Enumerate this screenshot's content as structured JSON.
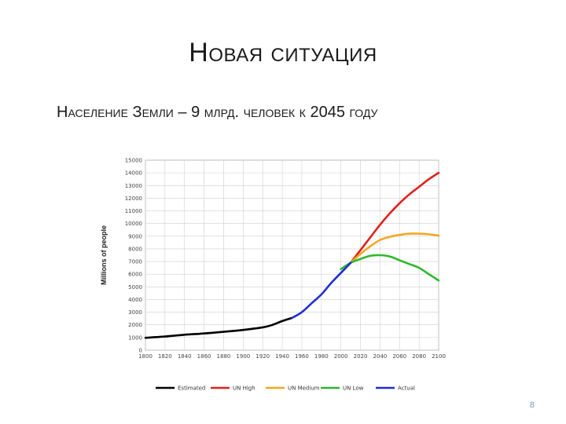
{
  "slide": {
    "title": "Новая ситуация",
    "subtitle": "Население Земли – 9 млрд. человек к 2045 году",
    "page_number": "8"
  },
  "chart_data": {
    "type": "line",
    "title": "",
    "xlabel": "",
    "ylabel": "Millions of people",
    "xlim": [
      1800,
      2100
    ],
    "ylim": [
      0,
      15000
    ],
    "grid": true,
    "legend_position": "bottom",
    "x_ticks": [
      "1800",
      "1820",
      "1840",
      "1860",
      "1880",
      "1900",
      "1920",
      "1940",
      "1960",
      "1980",
      "2000",
      "2020",
      "2040",
      "2060",
      "2080",
      "2100"
    ],
    "y_ticks": [
      "0",
      "1000",
      "2000",
      "3000",
      "4000",
      "5000",
      "6000",
      "7000",
      "8000",
      "9000",
      "10000",
      "11000",
      "12000",
      "13000",
      "14000",
      "15000"
    ],
    "series": [
      {
        "name": "Estimated",
        "color": "#000000",
        "x": [
          1800,
          1820,
          1840,
          1860,
          1880,
          1900,
          1920,
          1930,
          1940,
          1950
        ],
        "y": [
          980,
          1080,
          1220,
          1320,
          1450,
          1600,
          1800,
          2000,
          2300,
          2550
        ]
      },
      {
        "name": "UN High",
        "color": "#e0211c",
        "x": [
          2010,
          2020,
          2030,
          2040,
          2050,
          2060,
          2070,
          2080,
          2090,
          2100
        ],
        "y": [
          6900,
          7900,
          8900,
          9900,
          10800,
          11600,
          12300,
          12900,
          13500,
          14000
        ]
      },
      {
        "name": "UN Medium",
        "color": "#f5a623",
        "x": [
          2010,
          2020,
          2030,
          2040,
          2050,
          2060,
          2070,
          2080,
          2090,
          2100
        ],
        "y": [
          6900,
          7600,
          8200,
          8700,
          8950,
          9100,
          9200,
          9200,
          9150,
          9050
        ]
      },
      {
        "name": "UN Low",
        "color": "#2db82d",
        "x": [
          2000,
          2010,
          2020,
          2030,
          2040,
          2050,
          2060,
          2070,
          2080,
          2090,
          2100
        ],
        "y": [
          6400,
          6900,
          7200,
          7450,
          7500,
          7400,
          7100,
          6800,
          6500,
          6000,
          5500
        ]
      },
      {
        "name": "Actual",
        "color": "#1f2fd6",
        "x": [
          1950,
          1960,
          1970,
          1980,
          1990,
          2000,
          2010
        ],
        "y": [
          2550,
          3000,
          3700,
          4400,
          5300,
          6100,
          6900
        ]
      }
    ]
  }
}
